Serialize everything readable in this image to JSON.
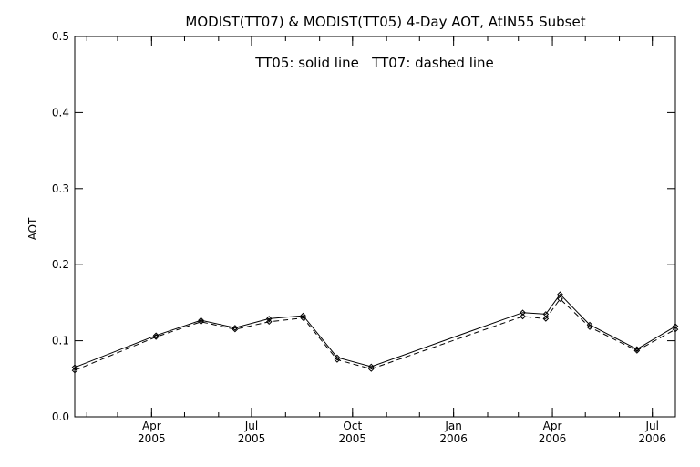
{
  "chart_data": {
    "type": "line",
    "title": "MODIST(TT07) & MODIST(TT05) 4-Day AOT, AtIN55 Subset",
    "annotation": "TT05: solid line   TT07: dashed line",
    "xlabel": "",
    "ylabel": "AOT",
    "ylim": [
      0.0,
      0.5
    ],
    "xlim": [
      "2005-01-21",
      "2006-07-22"
    ],
    "yticks": [
      "0.0",
      "0.1",
      "0.2",
      "0.3",
      "0.4",
      "0.5"
    ],
    "xticks": [
      {
        "date": "2005-04-01",
        "label_top": "Apr",
        "label_bottom": "2005"
      },
      {
        "date": "2005-07-01",
        "label_top": "Jul",
        "label_bottom": "2005"
      },
      {
        "date": "2005-10-01",
        "label_top": "Oct",
        "label_bottom": "2005"
      },
      {
        "date": "2006-01-01",
        "label_top": "Jan",
        "label_bottom": "2006"
      },
      {
        "date": "2006-04-01",
        "label_top": "Apr",
        "label_bottom": "2006"
      },
      {
        "date": "2006-07-01",
        "label_top": "Jul",
        "label_bottom": "2006"
      }
    ],
    "minor_ticks_per_month": true,
    "grid": false,
    "series": [
      {
        "name": "TT05",
        "style": "solid",
        "color": "#000000",
        "x": [
          "2005-01-21",
          "2005-04-05",
          "2005-05-16",
          "2005-06-16",
          "2005-07-17",
          "2005-08-17",
          "2005-09-17",
          "2005-10-18",
          "2006-03-05",
          "2006-03-26",
          "2006-04-08",
          "2006-05-05",
          "2006-06-17",
          "2006-07-22"
        ],
        "y": [
          0.065,
          0.107,
          0.127,
          0.117,
          0.129,
          0.133,
          0.078,
          0.066,
          0.137,
          0.135,
          0.161,
          0.121,
          0.089,
          0.119
        ]
      },
      {
        "name": "TT07",
        "style": "dashed",
        "color": "#000000",
        "x": [
          "2005-01-21",
          "2005-04-05",
          "2005-05-16",
          "2005-06-16",
          "2005-07-17",
          "2005-08-17",
          "2005-09-17",
          "2005-10-18",
          "2006-03-05",
          "2006-03-26",
          "2006-04-08",
          "2006-05-05",
          "2006-06-17",
          "2006-07-22"
        ],
        "y": [
          0.061,
          0.105,
          0.125,
          0.115,
          0.125,
          0.13,
          0.075,
          0.063,
          0.132,
          0.129,
          0.155,
          0.118,
          0.087,
          0.115
        ]
      }
    ]
  }
}
